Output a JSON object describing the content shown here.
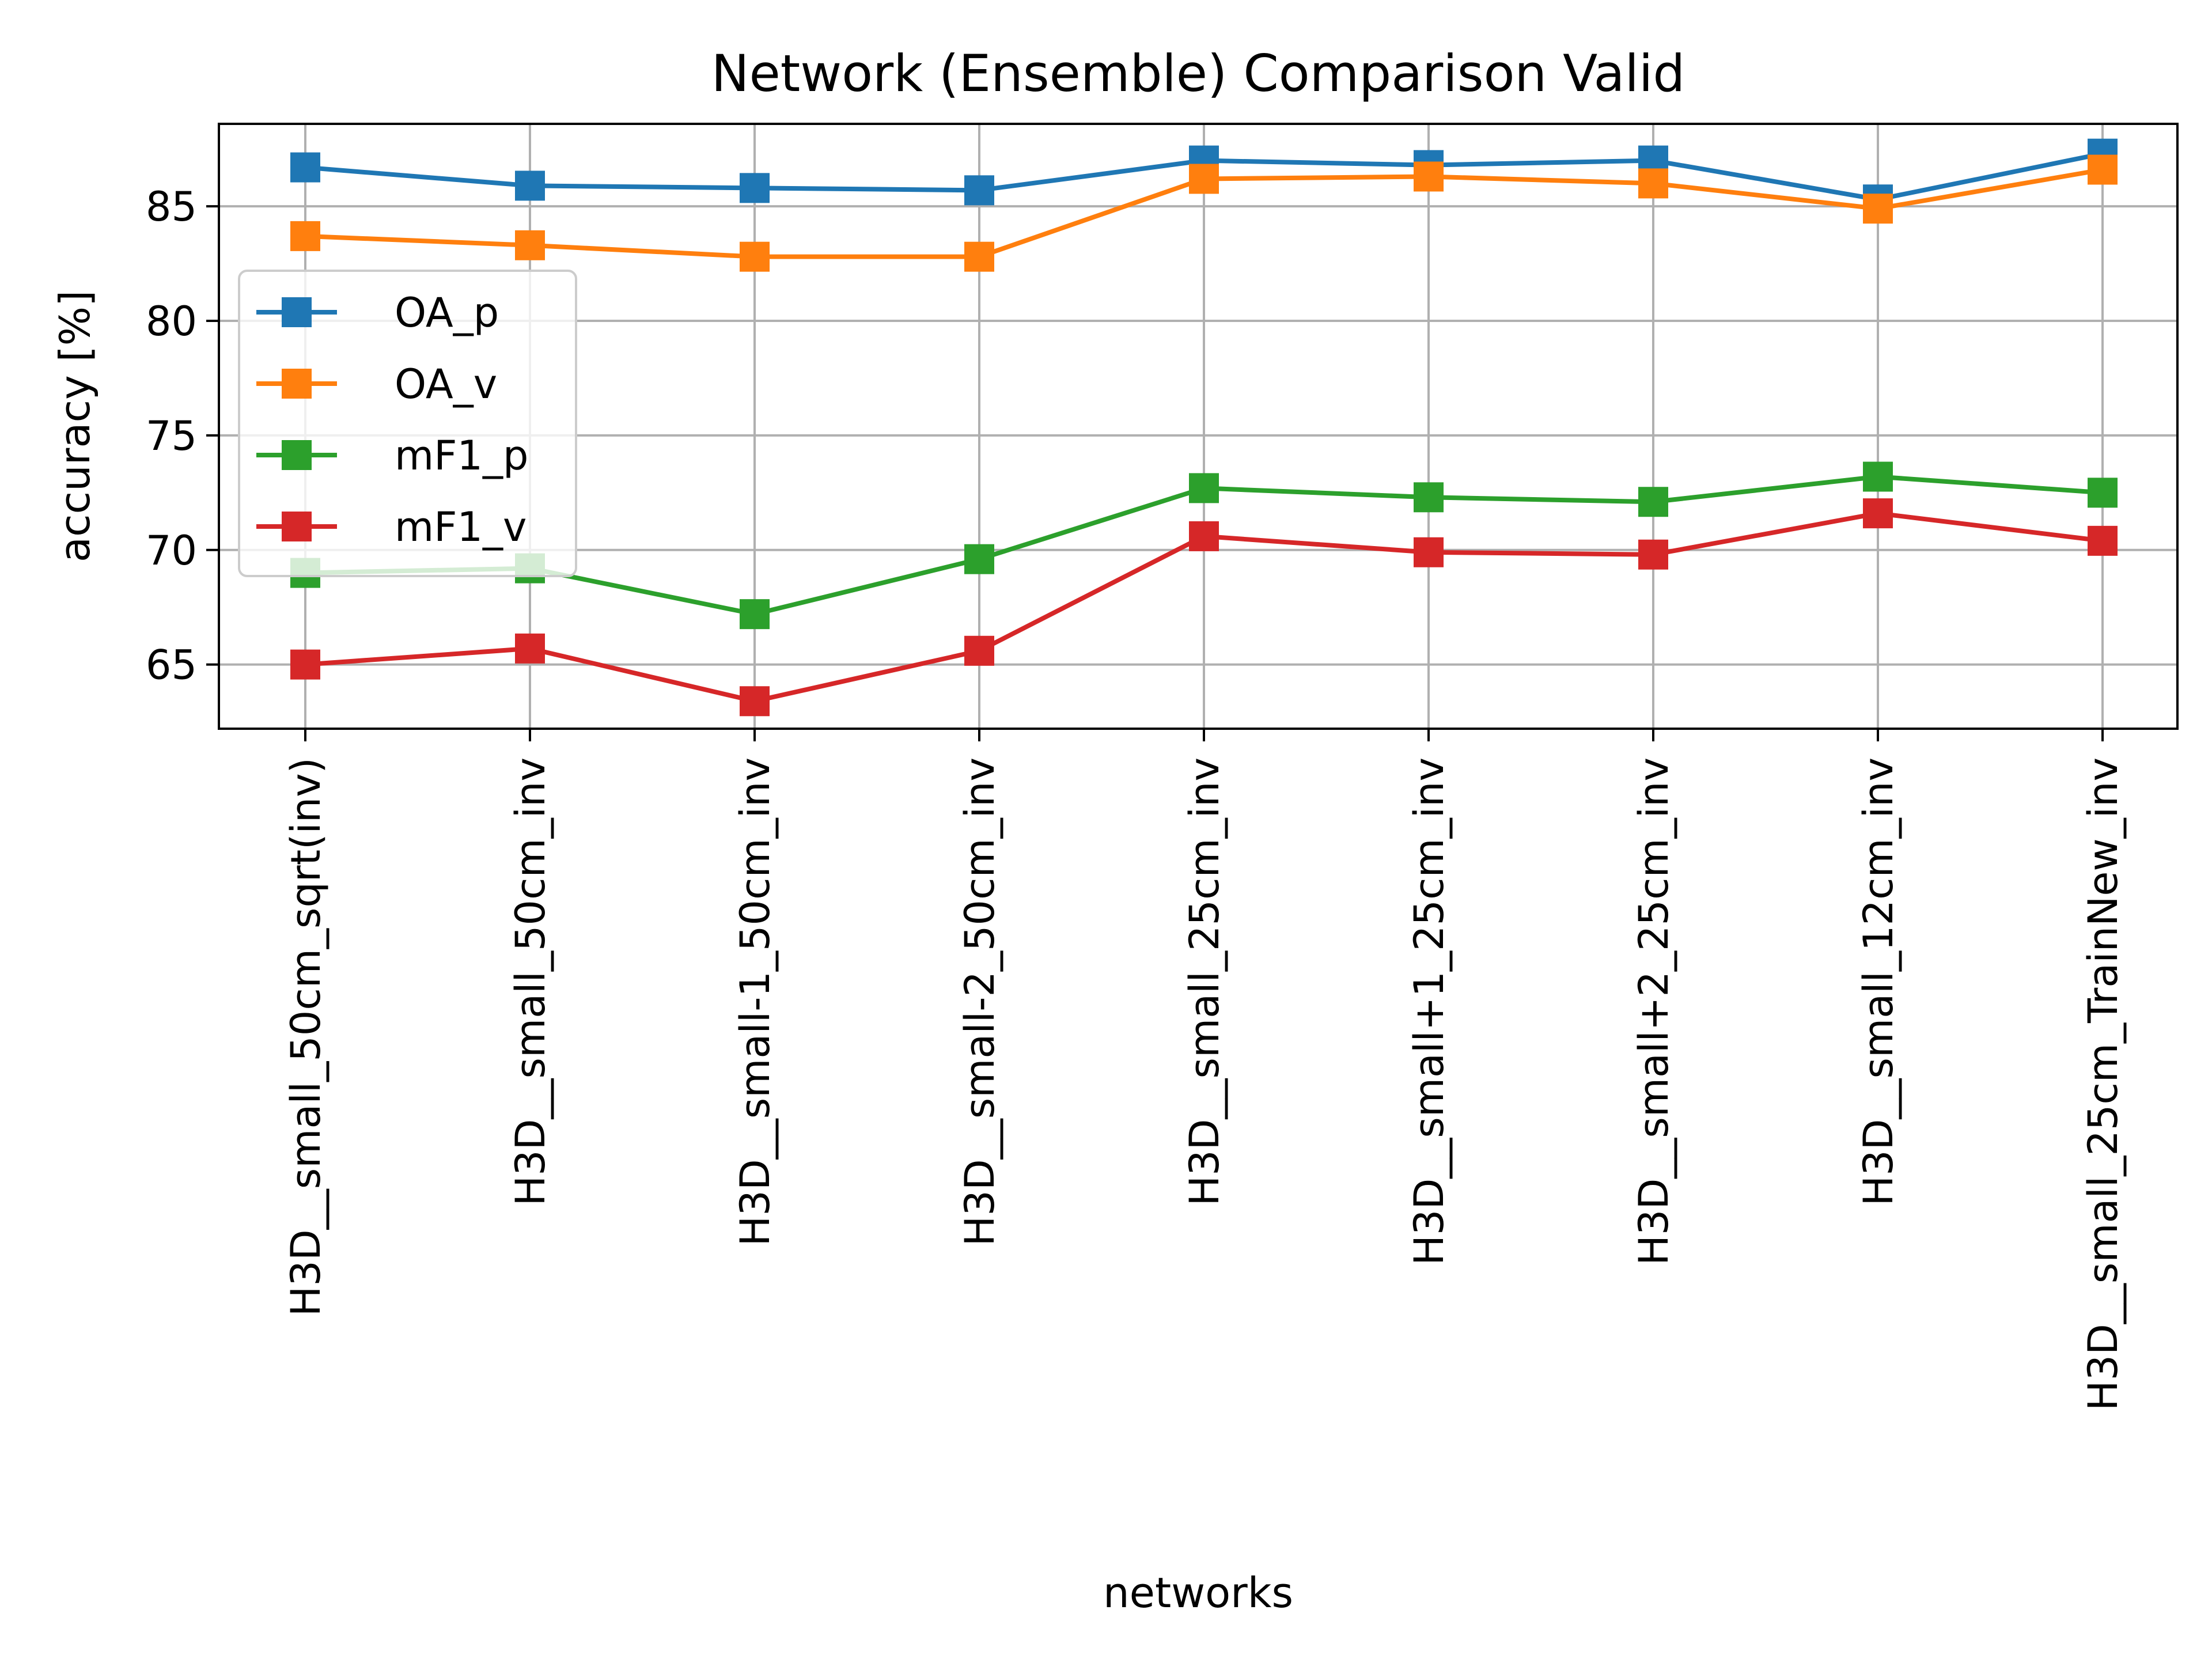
{
  "chart_data": {
    "type": "line",
    "title": "Network (Ensemble) Comparison Valid",
    "xlabel": "networks",
    "ylabel": "accuracy [%]",
    "categories": [
      "H3D__small_50cm_sqrt(inv)",
      "H3D__small_50cm_inv",
      "H3D__small-1_50cm_inv",
      "H3D__small-2_50cm_inv",
      "H3D__small_25cm_inv",
      "H3D__small+1_25cm_inv",
      "H3D__small+2_25cm_inv",
      "H3D__small_12cm_inv",
      "H3D__small_25cm_TrainNew_inv"
    ],
    "ylim": [
      62.2,
      88.6
    ],
    "yticks": [
      65,
      70,
      75,
      80,
      85
    ],
    "grid": true,
    "marker": "square",
    "legend_position": "center-left",
    "series": [
      {
        "name": "OA_p",
        "color": "#1f77b4",
        "values": [
          86.7,
          85.9,
          85.8,
          85.7,
          87.0,
          86.8,
          87.0,
          85.3,
          87.3
        ]
      },
      {
        "name": "OA_v",
        "color": "#ff7f0e",
        "values": [
          83.7,
          83.3,
          82.8,
          82.8,
          86.2,
          86.3,
          86.0,
          84.9,
          86.6
        ]
      },
      {
        "name": "mF1_p",
        "color": "#2ca02c",
        "values": [
          69.0,
          69.2,
          67.2,
          69.6,
          72.7,
          72.3,
          72.1,
          73.2,
          72.5
        ]
      },
      {
        "name": "mF1_v",
        "color": "#d62728",
        "values": [
          65.0,
          65.7,
          63.4,
          65.6,
          70.6,
          69.9,
          69.8,
          71.6,
          70.4
        ]
      }
    ]
  }
}
